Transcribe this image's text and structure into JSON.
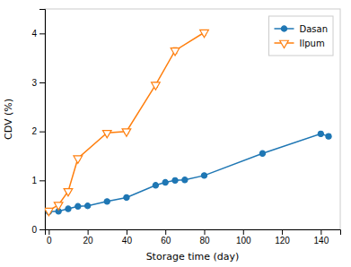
{
  "chart_data": {
    "type": "line",
    "x_label": "Storage time (day)",
    "y_label": "CDV (%)",
    "series": [
      {
        "name": "Dasan",
        "marker": "circle",
        "x": [
          0,
          5,
          10,
          15,
          20,
          30,
          40,
          55,
          60,
          65,
          70,
          80,
          110,
          140,
          144
        ],
        "values": [
          0.36,
          0.37,
          0.42,
          0.47,
          0.48,
          0.57,
          0.65,
          0.9,
          0.96,
          1.0,
          1.01,
          1.1,
          1.55,
          1.95,
          1.9
        ],
        "errors": [
          0.015,
          0.01,
          0.015,
          0.015,
          0.015,
          0.015,
          0.02,
          0.025,
          0.025,
          0.025,
          0.025,
          0.025,
          0.035,
          0.04,
          0.04
        ]
      },
      {
        "name": "Ilpum",
        "marker": "triangle-down",
        "x": [
          0,
          5,
          10,
          15,
          30,
          40,
          55,
          65,
          80
        ],
        "values": [
          0.38,
          0.5,
          0.78,
          1.45,
          1.97,
          2.0,
          2.95,
          3.65,
          4.02
        ],
        "errors": [
          0.015,
          0.02,
          0.03,
          0.04,
          0.04,
          0.04,
          0.05,
          0.06,
          0.05
        ]
      }
    ],
    "xlim": [
      -2,
      150
    ],
    "ylim": [
      0,
      4.5
    ],
    "xticks": [
      0,
      20,
      40,
      60,
      80,
      100,
      120,
      140
    ],
    "yticks": [
      0,
      1,
      2,
      3,
      4
    ],
    "grid": false,
    "legend": "upper right"
  }
}
